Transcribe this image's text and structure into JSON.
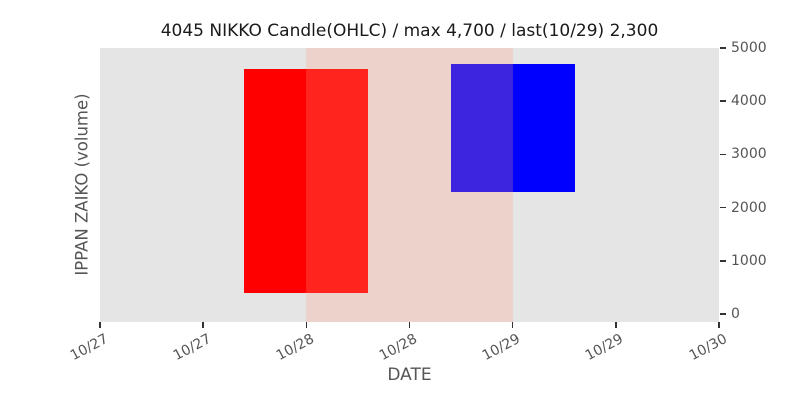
{
  "figure": {
    "title": "4045 NIKKO Candle(OHLC) / max 4,700 / last(10/29) 2,300",
    "xlabel": "DATE",
    "ylabel": "IPPAN ZAIKO (volume)"
  },
  "chart_data": {
    "type": "candlestick",
    "title": "4045 NIKKO Candle(OHLC) / max 4,700 / last(10/29) 2,300",
    "symbol": "4045 NIKKO",
    "max_value": 4700,
    "last_date": "10/29",
    "last_value": 2300,
    "xlabel": "DATE",
    "ylabel": "IPPAN ZAIKO (volume)",
    "x_ticks": {
      "positions": [
        0,
        1,
        2,
        3,
        4,
        5,
        6
      ],
      "labels": [
        "10/27",
        "10/27",
        "10/28",
        "10/28",
        "10/29",
        "10/29",
        "10/30"
      ]
    },
    "y_ticks": [
      0,
      1000,
      2000,
      3000,
      4000,
      5000
    ],
    "xlim": [
      0,
      6
    ],
    "ylim": [
      -150,
      5000
    ],
    "grid": false,
    "legend": false,
    "plot_background": "#e5e5e5",
    "highlight_band": {
      "x_from": 2,
      "x_to": 4,
      "color": "rgba(255,150,120,0.24)"
    },
    "candle_width_x": 1.2,
    "candles": [
      {
        "x": 2,
        "date": "10/28",
        "body_low": 400,
        "body_high": 4600,
        "color": "#ff0000"
      },
      {
        "x": 4,
        "date": "10/29",
        "body_low": 2300,
        "body_high": 4700,
        "color": "#0000ff"
      }
    ]
  }
}
